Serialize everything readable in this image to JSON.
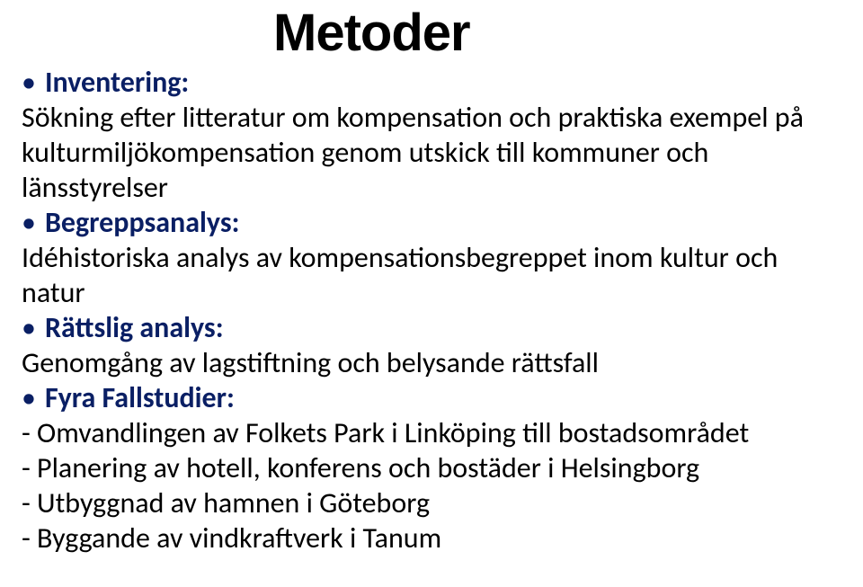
{
  "slide": {
    "title": "Metoder",
    "colors": {
      "accent": "#0a1f64",
      "body_text": "#000000",
      "background": "#ffffff",
      "title": "#000000"
    },
    "typography": {
      "title_font": "Arial Black",
      "title_fontsize_pt": 44,
      "body_font": "Calibri",
      "body_fontsize_pt": 24
    },
    "items": [
      {
        "label": "Inventering:",
        "text": "Sökning efter litteratur om kompensation och praktiska exempel på kulturmiljökompensation genom utskick till kommuner och länsstyrelser"
      },
      {
        "label": "Begreppsanalys:",
        "text": "Idéhistoriska analys av kompensationsbegreppet inom kultur och natur"
      },
      {
        "label": "Rättslig analys:",
        "text": "Genomgång av lagstiftning och belysande rättsfall"
      },
      {
        "label": "Fyra Fallstudier:",
        "subitems": [
          "- Omvandlingen av Folkets Park i Linköping till bostadsområdet",
          "- Planering av hotell, konferens och bostäder i Helsingborg",
          "- Utbyggnad av hamnen i Göteborg",
          "- Byggande av vindkraftverk i Tanum"
        ]
      }
    ]
  }
}
